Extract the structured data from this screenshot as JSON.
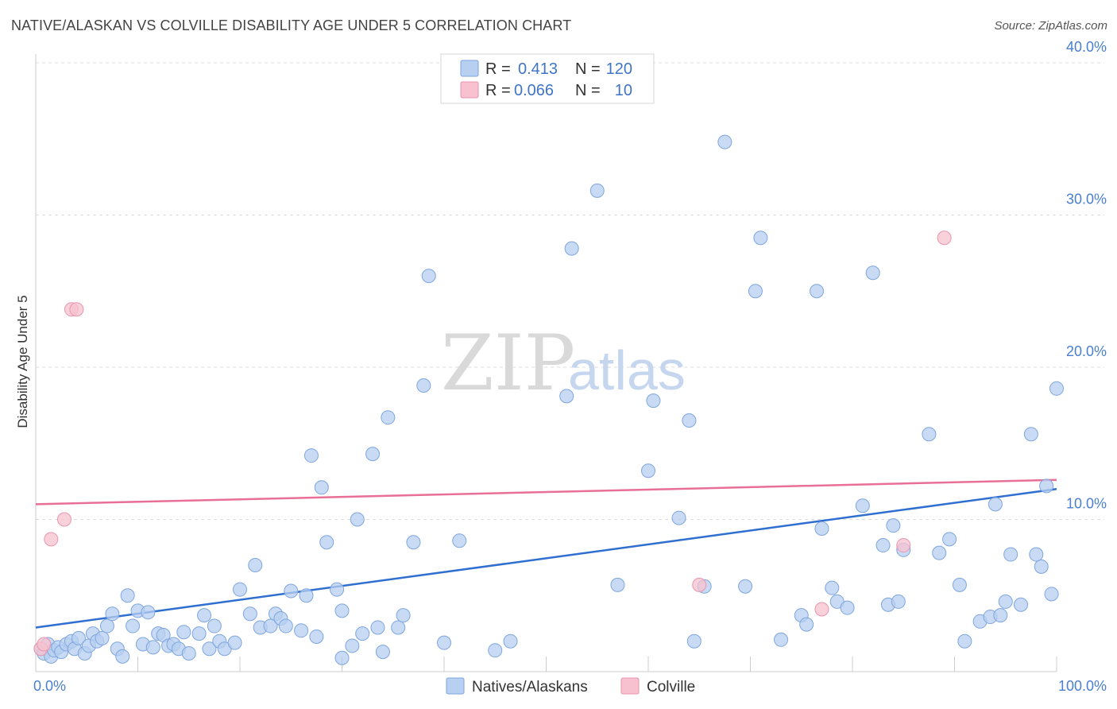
{
  "title": "NATIVE/ALASKAN VS COLVILLE DISABILITY AGE UNDER 5 CORRELATION CHART",
  "source": "Source: ZipAtlas.com",
  "watermark": {
    "zip": "ZIP",
    "atlas": "atlas"
  },
  "colors": {
    "blue_fill": "#b7cff0",
    "blue_stroke": "#7ea6de",
    "blue_line": "#2f6fd0",
    "pink_fill": "#f7c1cf",
    "pink_stroke": "#e996ae",
    "pink_line": "#e86f96",
    "grid": "#dddddd",
    "axis_text": "#4a7fd0"
  },
  "legend": {
    "rows": [
      {
        "r_label": "R =",
        "r_value": "0.413",
        "n_label": "N =",
        "n_value": "120"
      },
      {
        "r_label": "R =",
        "r_value": "0.066",
        "n_label": "N =",
        "n_value": "10"
      }
    ]
  },
  "bottom_legend": [
    "Natives/Alaskans",
    "Colville"
  ],
  "chart_data": {
    "type": "scatter",
    "title": "NATIVE/ALASKAN VS COLVILLE DISABILITY AGE UNDER 5 CORRELATION CHART",
    "xlabel": "",
    "ylabel": "Disability Age Under 5",
    "xlim": [
      0,
      100
    ],
    "ylim": [
      0,
      40
    ],
    "x_tick_labels": [
      "0.0%",
      "100.0%"
    ],
    "y_ticks": [
      10,
      20,
      30,
      40
    ],
    "y_tick_labels": [
      "10.0%",
      "20.0%",
      "30.0%",
      "40.0%"
    ],
    "grid": true,
    "series": [
      {
        "name": "Natives/Alaskans",
        "r": 0.413,
        "n": 120,
        "trend": [
          [
            0,
            2.9
          ],
          [
            100,
            12.0
          ]
        ],
        "points": [
          [
            0.5,
            1.5
          ],
          [
            0.8,
            1.2
          ],
          [
            1.2,
            1.8
          ],
          [
            1.5,
            1.0
          ],
          [
            1.8,
            1.4
          ],
          [
            2.2,
            1.6
          ],
          [
            2.5,
            1.3
          ],
          [
            3.0,
            1.8
          ],
          [
            3.5,
            2.0
          ],
          [
            3.8,
            1.5
          ],
          [
            4.2,
            2.2
          ],
          [
            4.8,
            1.2
          ],
          [
            5.2,
            1.7
          ],
          [
            5.6,
            2.5
          ],
          [
            6.0,
            2.0
          ],
          [
            6.5,
            2.2
          ],
          [
            7.0,
            3.0
          ],
          [
            7.5,
            3.8
          ],
          [
            8.0,
            1.5
          ],
          [
            8.5,
            1.0
          ],
          [
            9.0,
            5.0
          ],
          [
            9.5,
            3.0
          ],
          [
            10.0,
            4.0
          ],
          [
            10.5,
            1.8
          ],
          [
            11.0,
            3.9
          ],
          [
            11.5,
            1.6
          ],
          [
            12.0,
            2.5
          ],
          [
            12.5,
            2.4
          ],
          [
            13.0,
            1.7
          ],
          [
            13.5,
            1.8
          ],
          [
            14.0,
            1.5
          ],
          [
            14.5,
            2.6
          ],
          [
            15.0,
            1.2
          ],
          [
            16.0,
            2.5
          ],
          [
            16.5,
            3.7
          ],
          [
            17.0,
            1.5
          ],
          [
            17.5,
            3.0
          ],
          [
            18.0,
            2.0
          ],
          [
            18.5,
            1.5
          ],
          [
            19.5,
            1.9
          ],
          [
            20.0,
            5.4
          ],
          [
            21.0,
            3.8
          ],
          [
            21.5,
            7.0
          ],
          [
            22.0,
            2.9
          ],
          [
            23.0,
            3.0
          ],
          [
            23.5,
            3.8
          ],
          [
            24.0,
            3.5
          ],
          [
            24.5,
            3.0
          ],
          [
            25.0,
            5.3
          ],
          [
            26.0,
            2.7
          ],
          [
            26.5,
            5.0
          ],
          [
            27.0,
            14.2
          ],
          [
            27.5,
            2.3
          ],
          [
            28.0,
            12.1
          ],
          [
            28.5,
            8.5
          ],
          [
            29.5,
            5.4
          ],
          [
            30.0,
            4.0
          ],
          [
            30.0,
            0.9
          ],
          [
            31.0,
            1.7
          ],
          [
            31.5,
            10.0
          ],
          [
            32.0,
            2.5
          ],
          [
            33.0,
            14.3
          ],
          [
            33.5,
            2.9
          ],
          [
            34.0,
            1.3
          ],
          [
            34.5,
            16.7
          ],
          [
            35.5,
            2.9
          ],
          [
            36.0,
            3.7
          ],
          [
            37.0,
            8.5
          ],
          [
            38.0,
            18.8
          ],
          [
            38.5,
            26.0
          ],
          [
            40.0,
            1.9
          ],
          [
            41.5,
            8.6
          ],
          [
            45.0,
            1.4
          ],
          [
            46.5,
            2.0
          ],
          [
            52.0,
            18.1
          ],
          [
            52.5,
            27.8
          ],
          [
            55.0,
            31.6
          ],
          [
            57.0,
            5.7
          ],
          [
            60.0,
            13.2
          ],
          [
            60.5,
            17.8
          ],
          [
            63.0,
            10.1
          ],
          [
            64.0,
            16.5
          ],
          [
            64.5,
            2.0
          ],
          [
            65.5,
            5.6
          ],
          [
            67.5,
            34.8
          ],
          [
            69.5,
            5.6
          ],
          [
            70.5,
            25.0
          ],
          [
            71.0,
            28.5
          ],
          [
            73.0,
            2.1
          ],
          [
            75.0,
            3.7
          ],
          [
            75.5,
            3.1
          ],
          [
            76.5,
            25.0
          ],
          [
            77.0,
            9.4
          ],
          [
            78.0,
            5.5
          ],
          [
            78.5,
            4.6
          ],
          [
            79.5,
            4.2
          ],
          [
            81.0,
            10.9
          ],
          [
            82.0,
            26.2
          ],
          [
            83.0,
            8.3
          ],
          [
            83.5,
            4.4
          ],
          [
            84.0,
            9.6
          ],
          [
            84.5,
            4.6
          ],
          [
            85.0,
            8.0
          ],
          [
            87.5,
            15.6
          ],
          [
            88.5,
            7.8
          ],
          [
            89.5,
            8.7
          ],
          [
            90.5,
            5.7
          ],
          [
            91.0,
            2.0
          ],
          [
            92.5,
            3.3
          ],
          [
            93.5,
            3.6
          ],
          [
            94.0,
            11.0
          ],
          [
            94.5,
            3.7
          ],
          [
            95.0,
            4.6
          ],
          [
            95.5,
            7.7
          ],
          [
            96.5,
            4.4
          ],
          [
            97.5,
            15.6
          ],
          [
            98.0,
            7.7
          ],
          [
            98.5,
            6.9
          ],
          [
            99.0,
            12.2
          ],
          [
            99.5,
            5.1
          ],
          [
            100.0,
            18.6
          ]
        ]
      },
      {
        "name": "Colville",
        "r": 0.066,
        "n": 10,
        "trend": [
          [
            0,
            11.0
          ],
          [
            100,
            12.6
          ]
        ],
        "points": [
          [
            0.5,
            1.5
          ],
          [
            0.8,
            1.8
          ],
          [
            1.5,
            8.7
          ],
          [
            2.8,
            10.0
          ],
          [
            3.5,
            23.8
          ],
          [
            4.0,
            23.8
          ],
          [
            65.0,
            5.7
          ],
          [
            77.0,
            4.1
          ],
          [
            85.0,
            8.3
          ],
          [
            89.0,
            28.5
          ]
        ]
      }
    ]
  }
}
